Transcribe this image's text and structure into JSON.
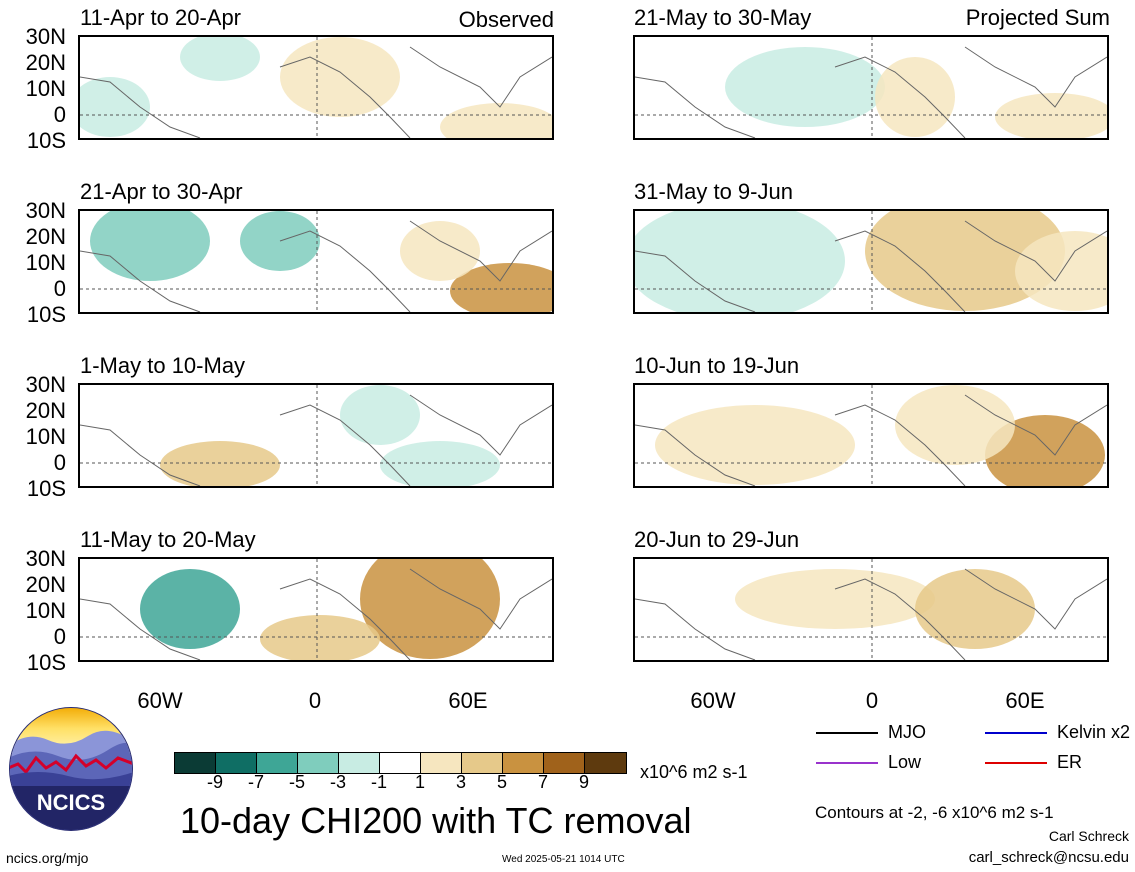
{
  "panels": [
    {
      "id": "p1",
      "title": "11-Apr to 20-Apr",
      "tag": "Observed"
    },
    {
      "id": "p2",
      "title": "21-Apr to 30-Apr",
      "tag": ""
    },
    {
      "id": "p3",
      "title": "1-May to 10-May",
      "tag": ""
    },
    {
      "id": "p4",
      "title": "11-May to 20-May",
      "tag": ""
    },
    {
      "id": "p5",
      "title": "21-May to 30-May",
      "tag": "Projected Sum"
    },
    {
      "id": "p6",
      "title": "31-May to 9-Jun",
      "tag": ""
    },
    {
      "id": "p7",
      "title": "10-Jun to 19-Jun",
      "tag": ""
    },
    {
      "id": "p8",
      "title": "20-Jun to 29-Jun",
      "tag": ""
    }
  ],
  "lat_labels": [
    "30N",
    "20N",
    "10N",
    "0",
    "10S"
  ],
  "lon_labels": [
    "60W",
    "0",
    "60E"
  ],
  "legend": {
    "mjo": "MJO",
    "kelvin": "Kelvin x2",
    "low": "Low",
    "er": "ER",
    "colors": {
      "mjo": "#000000",
      "kelvin": "#0000cc",
      "low": "#9933cc",
      "er": "#dd0000"
    }
  },
  "colorbar": {
    "ticks": [
      "-9",
      "-7",
      "-5",
      "-3",
      "-1",
      "1",
      "3",
      "5",
      "7",
      "9"
    ],
    "units": "x10^6 m2 s-1",
    "colors": [
      "#0b3b35",
      "#0f6e64",
      "#3ea696",
      "#7fcdbd",
      "#c8ece3",
      "#ffffff",
      "#f6e6bf",
      "#e6c98a",
      "#c99240",
      "#a0621b",
      "#5e3a0e"
    ]
  },
  "main_title": "10-day CHI200 with TC removal",
  "contours_note": "Contours at -2, -6 x10^6 m2 s-1",
  "author": "Carl Schreck",
  "email": "carl_schreck@ncsu.edu",
  "site": "ncics.org/mjo",
  "timestamp": "Wed 2025-05-21 1014 UTC",
  "logo_text": "NCICS"
}
